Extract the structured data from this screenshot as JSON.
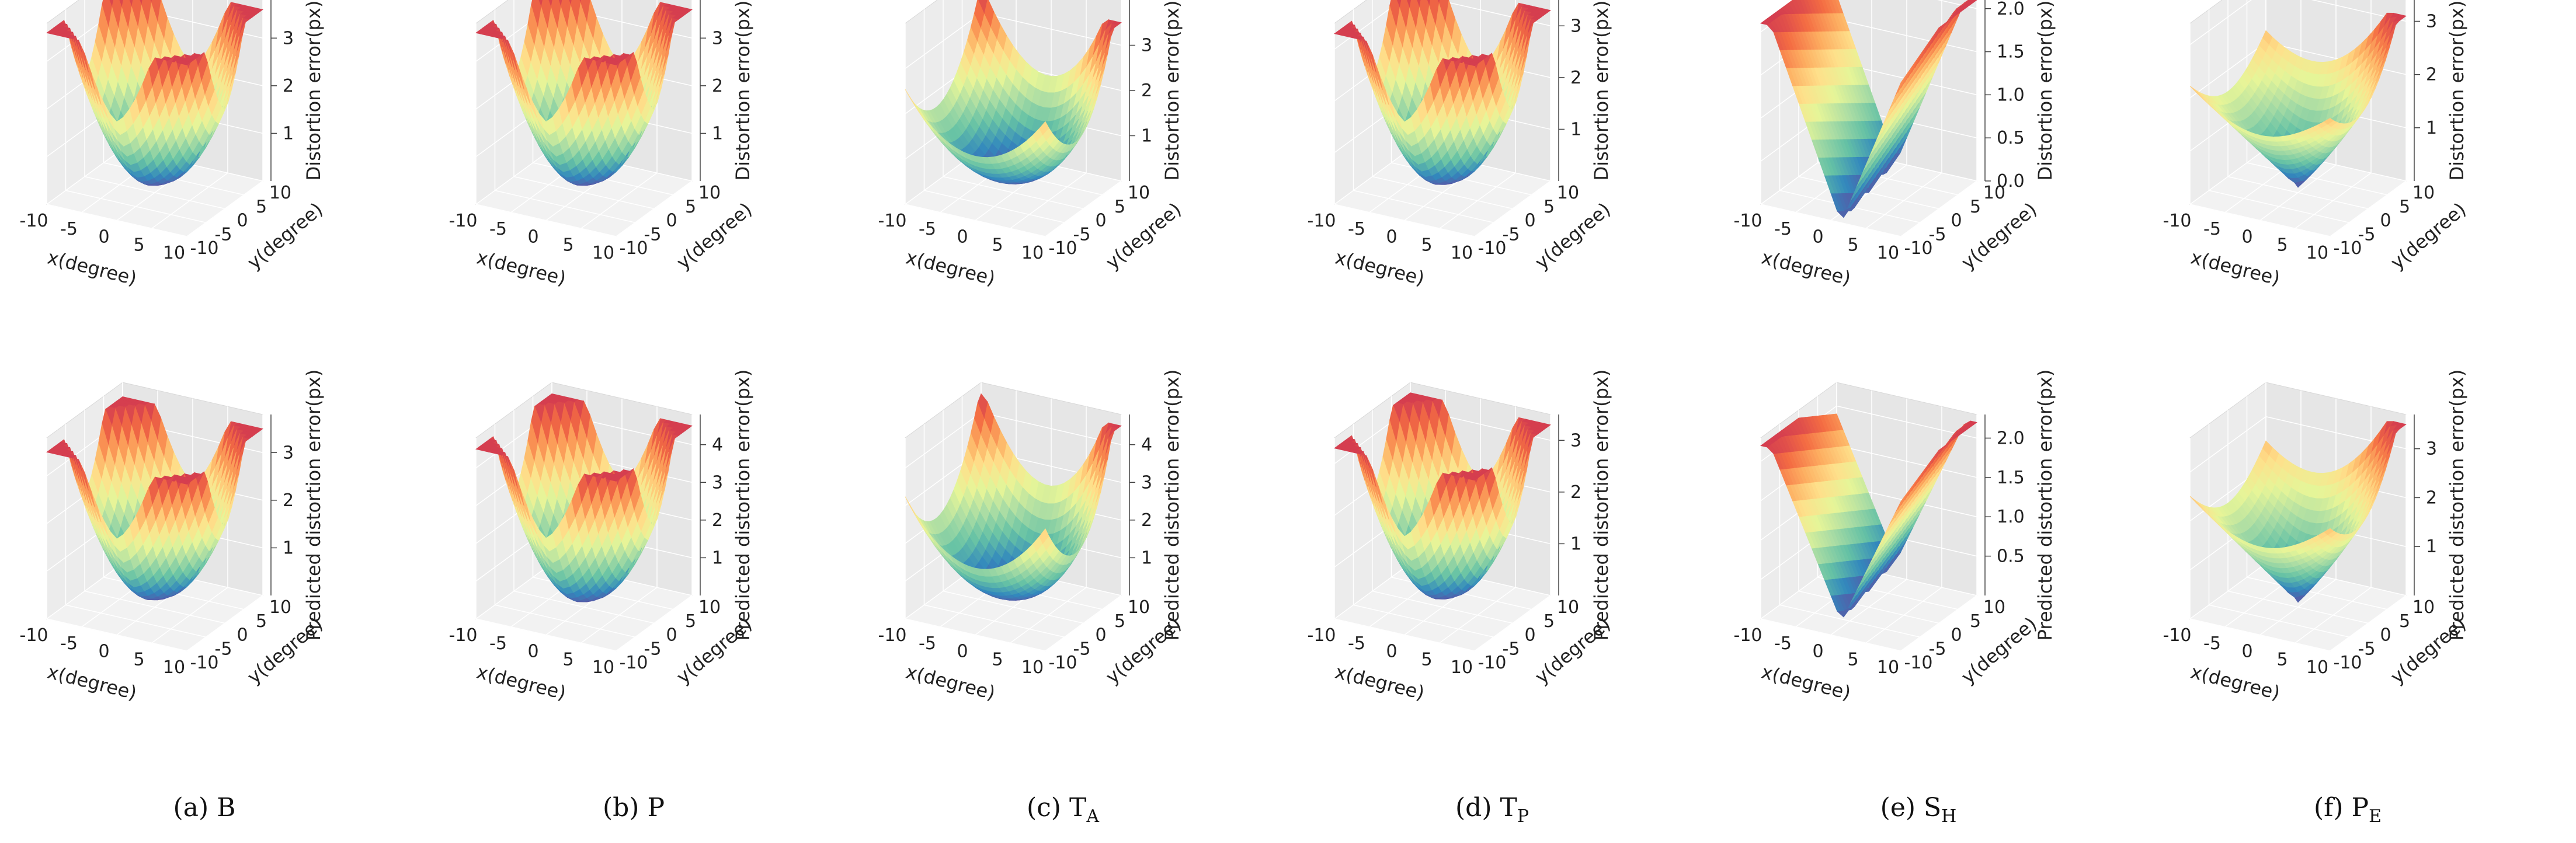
{
  "figure": {
    "rows": [
      {
        "row_id": "true",
        "z_label": "Distortion error(px)"
      },
      {
        "row_id": "predicted",
        "z_label": "Predicted distortion error(px)"
      }
    ],
    "x_label": "x(degree)",
    "y_label": "y(degree)",
    "x_ticks": [
      "-10",
      "-5",
      "0",
      "5",
      "10"
    ],
    "y_ticks": [
      "-10",
      "-5",
      "0",
      "5",
      "10"
    ],
    "columns": [
      {
        "id": "a",
        "caption_prefix": "(a) ",
        "caption_main": "B",
        "caption_sub": ""
      },
      {
        "id": "b",
        "caption_prefix": "(b) ",
        "caption_main": "P",
        "caption_sub": ""
      },
      {
        "id": "c",
        "caption_prefix": "(c) ",
        "caption_main": "T",
        "caption_sub": "A"
      },
      {
        "id": "d",
        "caption_prefix": "(d) ",
        "caption_main": "T",
        "caption_sub": "P"
      },
      {
        "id": "e",
        "caption_prefix": "(e)  ",
        "caption_main": "S",
        "caption_sub": "H"
      },
      {
        "id": "f",
        "caption_prefix": "(f)  ",
        "caption_main": "P",
        "caption_sub": "E"
      }
    ],
    "colormap": [
      "#5e4fa2",
      "#3288bd",
      "#66c2a5",
      "#abdda4",
      "#e6f598",
      "#fee08b",
      "#fdae61",
      "#f46d43",
      "#d53e4f"
    ]
  },
  "chart_data": [
    {
      "type": "surface",
      "panel": "a-true",
      "title": "",
      "xlabel": "x(degree)",
      "ylabel": "y(degree)",
      "zlabel": "Distortion error(px)",
      "xlim": [
        -10,
        10
      ],
      "ylim": [
        -10,
        10
      ],
      "zlim": [
        0,
        3.8
      ],
      "z_ticks": [
        "1",
        "2",
        "3"
      ],
      "z_tick_values": [
        1,
        2,
        3
      ],
      "shape": "bowl",
      "z_min": 0.2,
      "z_max": 3.6
    },
    {
      "type": "surface",
      "panel": "b-true",
      "title": "",
      "xlabel": "x(degree)",
      "ylabel": "y(degree)",
      "zlabel": "Distortion error(px)",
      "xlim": [
        -10,
        10
      ],
      "ylim": [
        -10,
        10
      ],
      "zlim": [
        0,
        3.8
      ],
      "z_ticks": [
        "1",
        "2",
        "3"
      ],
      "z_tick_values": [
        1,
        2,
        3
      ],
      "shape": "bowl",
      "z_min": 0.2,
      "z_max": 3.6
    },
    {
      "type": "surface",
      "panel": "c-true",
      "title": "",
      "xlabel": "x(degree)",
      "ylabel": "y(degree)",
      "zlabel": "Distortion error(px)",
      "xlim": [
        -10,
        10
      ],
      "ylim": [
        -10,
        10
      ],
      "zlim": [
        0,
        4.0
      ],
      "z_ticks": [
        "1",
        "2",
        "3"
      ],
      "z_tick_values": [
        1,
        2,
        3
      ],
      "shape": "saddle",
      "z_min": 0.3,
      "z_max": 3.5
    },
    {
      "type": "surface",
      "panel": "d-true",
      "title": "",
      "xlabel": "x(degree)",
      "ylabel": "y(degree)",
      "zlabel": "Distortion error(px)",
      "xlim": [
        -10,
        10
      ],
      "ylim": [
        -10,
        10
      ],
      "zlim": [
        0,
        3.5
      ],
      "z_ticks": [
        "1",
        "2",
        "3"
      ],
      "z_tick_values": [
        1,
        2,
        3
      ],
      "shape": "bowl",
      "z_min": 0.2,
      "z_max": 3.3
    },
    {
      "type": "surface",
      "panel": "e-true",
      "title": "",
      "xlabel": "x(degree)",
      "ylabel": "y(degree)",
      "zlabel": "Distortion error(px)",
      "xlim": [
        -10,
        10
      ],
      "ylim": [
        -10,
        10
      ],
      "zlim": [
        0,
        2.1
      ],
      "z_ticks": [
        "0.0",
        "0.5",
        "1.0",
        "1.5",
        "2.0"
      ],
      "z_tick_values": [
        0,
        0.5,
        1,
        1.5,
        2
      ],
      "shape": "vfold",
      "z_min": 0,
      "z_max": 2.1
    },
    {
      "type": "surface",
      "panel": "f-true",
      "title": "",
      "xlabel": "x(degree)",
      "ylabel": "y(degree)",
      "zlabel": "Distortion error(px)",
      "xlim": [
        -10,
        10
      ],
      "ylim": [
        -10,
        10
      ],
      "zlim": [
        0,
        3.4
      ],
      "z_ticks": [
        "1",
        "2",
        "3"
      ],
      "z_tick_values": [
        1,
        2,
        3
      ],
      "shape": "cone",
      "z_min": 0.1,
      "z_max": 3.1
    },
    {
      "type": "surface",
      "panel": "a-pred",
      "title": "",
      "xlabel": "x(degree)",
      "ylabel": "y(degree)",
      "zlabel": "Predicted distortion error(px)",
      "xlim": [
        -10,
        10
      ],
      "ylim": [
        -10,
        10
      ],
      "zlim": [
        0,
        3.8
      ],
      "z_ticks": [
        "1",
        "2",
        "3"
      ],
      "z_tick_values": [
        1,
        2,
        3
      ],
      "shape": "bowl",
      "z_min": 0.2,
      "z_max": 3.5
    },
    {
      "type": "surface",
      "panel": "b-pred",
      "title": "",
      "xlabel": "x(degree)",
      "ylabel": "y(degree)",
      "zlabel": "Predicted distortion error(px)",
      "xlim": [
        -10,
        10
      ],
      "ylim": [
        -10,
        10
      ],
      "zlim": [
        0,
        4.8
      ],
      "z_ticks": [
        "1",
        "2",
        "3",
        "4"
      ],
      "z_tick_values": [
        1,
        2,
        3,
        4
      ],
      "shape": "bowl",
      "z_min": 0.2,
      "z_max": 4.5
    },
    {
      "type": "surface",
      "panel": "c-pred",
      "title": "",
      "xlabel": "x(degree)",
      "ylabel": "y(degree)",
      "zlabel": "Predicted distortion error(px)",
      "xlim": [
        -10,
        10
      ],
      "ylim": [
        -10,
        10
      ],
      "zlim": [
        0,
        4.8
      ],
      "z_ticks": [
        "1",
        "2",
        "3",
        "4"
      ],
      "z_tick_values": [
        1,
        2,
        3,
        4
      ],
      "shape": "saddle",
      "z_min": 0.3,
      "z_max": 4.5
    },
    {
      "type": "surface",
      "panel": "d-pred",
      "title": "",
      "xlabel": "x(degree)",
      "ylabel": "y(degree)",
      "zlabel": "Predicted distortion error(px)",
      "xlim": [
        -10,
        10
      ],
      "ylim": [
        -10,
        10
      ],
      "zlim": [
        0,
        3.5
      ],
      "z_ticks": [
        "1",
        "2",
        "3"
      ],
      "z_tick_values": [
        1,
        2,
        3
      ],
      "shape": "bowl",
      "z_min": 0.2,
      "z_max": 3.3
    },
    {
      "type": "surface",
      "panel": "e-pred",
      "title": "",
      "xlabel": "x(degree)",
      "ylabel": "y(degree)",
      "zlabel": "Predicted distortion error(px)",
      "xlim": [
        -10,
        10
      ],
      "ylim": [
        -10,
        10
      ],
      "zlim": [
        0,
        2.3
      ],
      "z_ticks": [
        "0.5",
        "1.0",
        "1.5",
        "2.0"
      ],
      "z_tick_values": [
        0.5,
        1,
        1.5,
        2
      ],
      "shape": "vfold",
      "z_min": 0.2,
      "z_max": 2.2
    },
    {
      "type": "surface",
      "panel": "f-pred",
      "title": "",
      "xlabel": "x(degree)",
      "ylabel": "y(degree)",
      "zlabel": "Predicted distortion error(px)",
      "xlim": [
        -10,
        10
      ],
      "ylim": [
        -10,
        10
      ],
      "zlim": [
        0,
        3.7
      ],
      "z_ticks": [
        "1",
        "2",
        "3"
      ],
      "z_tick_values": [
        1,
        2,
        3
      ],
      "shape": "cone",
      "z_min": 0.1,
      "z_max": 3.5
    }
  ]
}
